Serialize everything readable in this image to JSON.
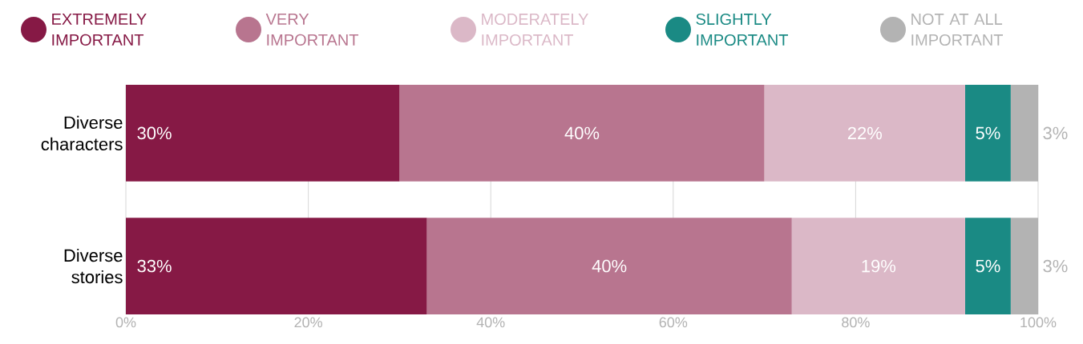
{
  "chart_data": {
    "type": "bar",
    "orientation": "horizontal",
    "stacked": true,
    "categories": [
      "Diverse characters",
      "Diverse stories"
    ],
    "series": [
      {
        "name": "EXTREMELY IMPORTANT",
        "color": "#861945",
        "values": [
          30,
          33
        ],
        "value_labels": [
          "30%",
          "33%"
        ]
      },
      {
        "name": "VERY IMPORTANT",
        "color": "#b8758f",
        "values": [
          40,
          40
        ],
        "value_labels": [
          "40%",
          "40%"
        ]
      },
      {
        "name": "MODERATELY IMPORTANT",
        "color": "#dbb8c7",
        "values": [
          22,
          19
        ],
        "value_labels": [
          "22%",
          "19%"
        ]
      },
      {
        "name": "SLIGHTLY IMPORTANT",
        "color": "#1a8a84",
        "values": [
          5,
          5
        ],
        "value_labels": [
          "5%",
          "5%"
        ]
      },
      {
        "name": "NOT AT ALL IMPORTANT",
        "color": "#b3b3b3",
        "values": [
          3,
          3
        ],
        "value_labels": [
          "3%",
          "3%"
        ]
      }
    ],
    "xlim": [
      0,
      100
    ],
    "xticks": [
      {
        "value": 0,
        "label": "0%"
      },
      {
        "value": 20,
        "label": "20%"
      },
      {
        "value": 40,
        "label": "40%"
      },
      {
        "value": 60,
        "label": "60%"
      },
      {
        "value": 80,
        "label": "80%"
      },
      {
        "value": 100,
        "label": "100%"
      }
    ],
    "grid": "x",
    "legend": "top"
  }
}
